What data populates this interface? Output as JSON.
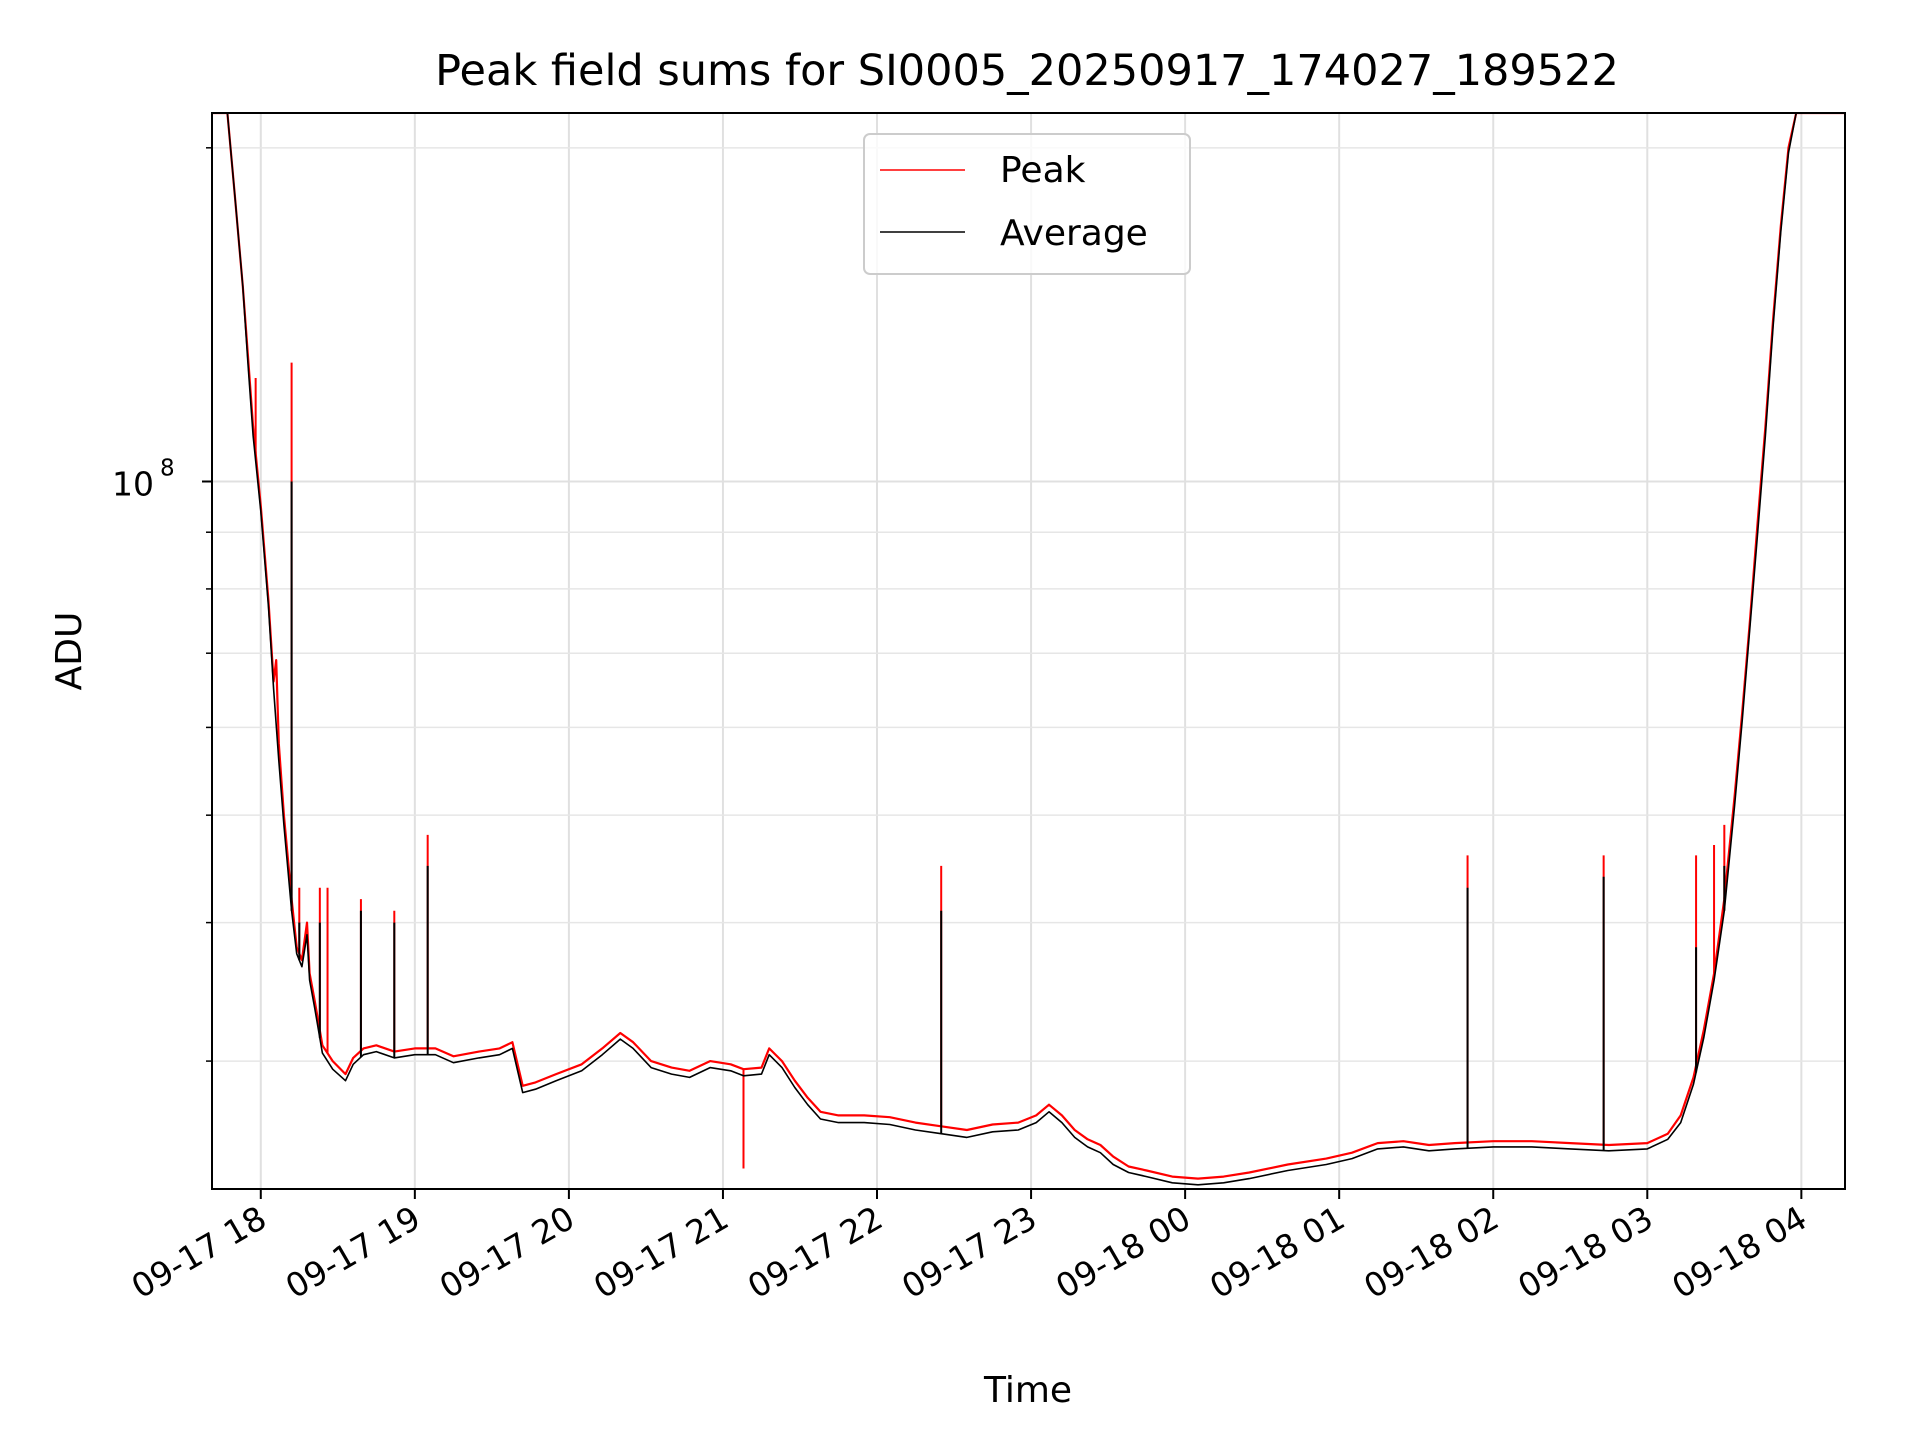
{
  "chart_data": {
    "type": "line",
    "title": "Peak field sums for SI0005_20250917_174027_189522",
    "xlabel": "Time",
    "ylabel": "ADU",
    "yscale": "log",
    "xlim": [
      "2025-09-17 17:41",
      "2025-09-18 04:17"
    ],
    "ylim": [
      23000000,
      215000000
    ],
    "x_ticks": [
      "09-17 18",
      "09-17 19",
      "09-17 20",
      "09-17 21",
      "09-17 22",
      "09-17 23",
      "09-18 00",
      "09-18 01",
      "09-18 02",
      "09-18 03",
      "09-18 04"
    ],
    "y_ticks": [
      {
        "value": 100000000,
        "label": "10^8",
        "mantissa": "10",
        "exponent": "8"
      }
    ],
    "y_minor_ticks": [
      30000000,
      40000000,
      50000000,
      60000000,
      70000000,
      80000000,
      90000000,
      200000000
    ],
    "grid": true,
    "legend_position": "top-center",
    "series": [
      {
        "name": "Peak",
        "color": "#ff0000",
        "points": [
          [
            "2025-09-17 17:41",
            215000000
          ],
          [
            "2025-09-17 17:47",
            215000000
          ],
          [
            "2025-09-17 17:50",
            180000000
          ],
          [
            "2025-09-17 17:53",
            150000000
          ],
          [
            "2025-09-17 17:55",
            130000000
          ],
          [
            "2025-09-17 17:57",
            112000000
          ],
          [
            "2025-09-17 18:00",
            95000000
          ],
          [
            "2025-09-17 18:03",
            78000000
          ],
          [
            "2025-09-17 18:05",
            66000000
          ],
          [
            "2025-09-17 18:06",
            69000000
          ],
          [
            "2025-09-17 18:07",
            58000000
          ],
          [
            "2025-09-17 18:09",
            50000000
          ],
          [
            "2025-09-17 18:12",
            42000000
          ],
          [
            "2025-09-17 18:14",
            38000000
          ],
          [
            "2025-09-17 18:16",
            37000000
          ],
          [
            "2025-09-17 18:18",
            40000000
          ],
          [
            "2025-09-17 18:19",
            36000000
          ],
          [
            "2025-09-17 18:21",
            34000000
          ],
          [
            "2025-09-17 18:24",
            31000000
          ],
          [
            "2025-09-17 18:28",
            30000000
          ],
          [
            "2025-09-17 18:33",
            29200000
          ],
          [
            "2025-09-17 18:36",
            30200000
          ],
          [
            "2025-09-17 18:40",
            30800000
          ],
          [
            "2025-09-17 18:45",
            31000000
          ],
          [
            "2025-09-17 18:52",
            30600000
          ],
          [
            "2025-09-17 19:00",
            30800000
          ],
          [
            "2025-09-17 19:08",
            30800000
          ],
          [
            "2025-09-17 19:15",
            30300000
          ],
          [
            "2025-09-17 19:25",
            30600000
          ],
          [
            "2025-09-17 19:33",
            30800000
          ],
          [
            "2025-09-17 19:38",
            31200000
          ],
          [
            "2025-09-17 19:42",
            28500000
          ],
          [
            "2025-09-17 19:47",
            28700000
          ],
          [
            "2025-09-17 19:55",
            29200000
          ],
          [
            "2025-09-17 20:05",
            29800000
          ],
          [
            "2025-09-17 20:13",
            30800000
          ],
          [
            "2025-09-17 20:20",
            31800000
          ],
          [
            "2025-09-17 20:25",
            31200000
          ],
          [
            "2025-09-17 20:32",
            30000000
          ],
          [
            "2025-09-17 20:40",
            29600000
          ],
          [
            "2025-09-17 20:47",
            29400000
          ],
          [
            "2025-09-17 20:55",
            30000000
          ],
          [
            "2025-09-17 21:03",
            29800000
          ],
          [
            "2025-09-17 21:08",
            29500000
          ],
          [
            "2025-09-17 21:15",
            29600000
          ],
          [
            "2025-09-17 21:18",
            30800000
          ],
          [
            "2025-09-17 21:23",
            30000000
          ],
          [
            "2025-09-17 21:28",
            28800000
          ],
          [
            "2025-09-17 21:33",
            27800000
          ],
          [
            "2025-09-17 21:38",
            27000000
          ],
          [
            "2025-09-17 21:45",
            26800000
          ],
          [
            "2025-09-17 21:55",
            26800000
          ],
          [
            "2025-09-17 22:05",
            26700000
          ],
          [
            "2025-09-17 22:15",
            26400000
          ],
          [
            "2025-09-17 22:25",
            26200000
          ],
          [
            "2025-09-17 22:35",
            26000000
          ],
          [
            "2025-09-17 22:45",
            26300000
          ],
          [
            "2025-09-17 22:55",
            26400000
          ],
          [
            "2025-09-17 23:02",
            26800000
          ],
          [
            "2025-09-17 23:07",
            27400000
          ],
          [
            "2025-09-17 23:12",
            26800000
          ],
          [
            "2025-09-17 23:17",
            26000000
          ],
          [
            "2025-09-17 23:22",
            25500000
          ],
          [
            "2025-09-17 23:27",
            25200000
          ],
          [
            "2025-09-17 23:32",
            24600000
          ],
          [
            "2025-09-17 23:38",
            24100000
          ],
          [
            "2025-09-17 23:45",
            23900000
          ],
          [
            "2025-09-17 23:55",
            23600000
          ],
          [
            "2025-09-18 00:05",
            23500000
          ],
          [
            "2025-09-18 00:15",
            23600000
          ],
          [
            "2025-09-18 00:25",
            23800000
          ],
          [
            "2025-09-18 00:40",
            24200000
          ],
          [
            "2025-09-18 00:55",
            24500000
          ],
          [
            "2025-09-18 01:05",
            24800000
          ],
          [
            "2025-09-18 01:15",
            25300000
          ],
          [
            "2025-09-18 01:25",
            25400000
          ],
          [
            "2025-09-18 01:35",
            25200000
          ],
          [
            "2025-09-18 01:45",
            25300000
          ],
          [
            "2025-09-18 02:00",
            25400000
          ],
          [
            "2025-09-18 02:15",
            25400000
          ],
          [
            "2025-09-18 02:30",
            25300000
          ],
          [
            "2025-09-18 02:45",
            25200000
          ],
          [
            "2025-09-18 03:00",
            25300000
          ],
          [
            "2025-09-18 03:08",
            25800000
          ],
          [
            "2025-09-18 03:13",
            26800000
          ],
          [
            "2025-09-18 03:18",
            29000000
          ],
          [
            "2025-09-18 03:22",
            32000000
          ],
          [
            "2025-09-18 03:26",
            36000000
          ],
          [
            "2025-09-18 03:30",
            42000000
          ],
          [
            "2025-09-18 03:34",
            52000000
          ],
          [
            "2025-09-18 03:37",
            62000000
          ],
          [
            "2025-09-18 03:40",
            75000000
          ],
          [
            "2025-09-18 03:43",
            92000000
          ],
          [
            "2025-09-18 03:46",
            112000000
          ],
          [
            "2025-09-18 03:49",
            140000000
          ],
          [
            "2025-09-18 03:52",
            170000000
          ],
          [
            "2025-09-18 03:55",
            200000000
          ],
          [
            "2025-09-18 03:58",
            215000000
          ],
          [
            "2025-09-18 04:17",
            215000000
          ]
        ],
        "spikes": [
          [
            "2025-09-17 17:58",
            124000000
          ],
          [
            "2025-09-17 18:12",
            128000000
          ],
          [
            "2025-09-17 18:15",
            43000000
          ],
          [
            "2025-09-17 18:23",
            43000000
          ],
          [
            "2025-09-17 18:26",
            43000000
          ],
          [
            "2025-09-17 18:39",
            42000000
          ],
          [
            "2025-09-17 18:52",
            41000000
          ],
          [
            "2025-09-17 19:05",
            48000000
          ],
          [
            "2025-09-17 21:08",
            24000000
          ],
          [
            "2025-09-17 22:25",
            45000000
          ],
          [
            "2025-09-18 01:50",
            46000000
          ],
          [
            "2025-09-18 02:43",
            46000000
          ],
          [
            "2025-09-18 03:19",
            46000000
          ],
          [
            "2025-09-18 03:26",
            47000000
          ],
          [
            "2025-09-18 03:30",
            49000000
          ],
          [
            "2025-09-18 03:38",
            66000000
          ]
        ]
      },
      {
        "name": "Average",
        "color": "#000000",
        "points": [
          [
            "2025-09-17 17:41",
            215000000
          ],
          [
            "2025-09-17 17:47",
            215000000
          ],
          [
            "2025-09-17 17:50",
            180000000
          ],
          [
            "2025-09-17 17:53",
            150000000
          ],
          [
            "2025-09-17 17:55",
            128000000
          ],
          [
            "2025-09-17 17:57",
            110000000
          ],
          [
            "2025-09-17 18:00",
            94000000
          ],
          [
            "2025-09-17 18:03",
            77000000
          ],
          [
            "2025-09-17 18:05",
            65000000
          ],
          [
            "2025-09-17 18:07",
            56000000
          ],
          [
            "2025-09-17 18:09",
            49000000
          ],
          [
            "2025-09-17 18:12",
            41000000
          ],
          [
            "2025-09-17 18:14",
            37500000
          ],
          [
            "2025-09-17 18:16",
            36500000
          ],
          [
            "2025-09-17 18:18",
            39000000
          ],
          [
            "2025-09-17 18:19",
            35500000
          ],
          [
            "2025-09-17 18:21",
            33500000
          ],
          [
            "2025-09-17 18:24",
            30500000
          ],
          [
            "2025-09-17 18:28",
            29500000
          ],
          [
            "2025-09-17 18:33",
            28800000
          ],
          [
            "2025-09-17 18:36",
            29800000
          ],
          [
            "2025-09-17 18:40",
            30400000
          ],
          [
            "2025-09-17 18:45",
            30600000
          ],
          [
            "2025-09-17 18:52",
            30200000
          ],
          [
            "2025-09-17 19:00",
            30400000
          ],
          [
            "2025-09-17 19:08",
            30400000
          ],
          [
            "2025-09-17 19:15",
            29900000
          ],
          [
            "2025-09-17 19:25",
            30200000
          ],
          [
            "2025-09-17 19:33",
            30400000
          ],
          [
            "2025-09-17 19:38",
            30800000
          ],
          [
            "2025-09-17 19:42",
            28100000
          ],
          [
            "2025-09-17 19:47",
            28300000
          ],
          [
            "2025-09-17 19:55",
            28800000
          ],
          [
            "2025-09-17 20:05",
            29400000
          ],
          [
            "2025-09-17 20:13",
            30400000
          ],
          [
            "2025-09-17 20:20",
            31400000
          ],
          [
            "2025-09-17 20:25",
            30800000
          ],
          [
            "2025-09-17 20:32",
            29600000
          ],
          [
            "2025-09-17 20:40",
            29200000
          ],
          [
            "2025-09-17 20:47",
            29000000
          ],
          [
            "2025-09-17 20:55",
            29600000
          ],
          [
            "2025-09-17 21:03",
            29400000
          ],
          [
            "2025-09-17 21:08",
            29100000
          ],
          [
            "2025-09-17 21:15",
            29200000
          ],
          [
            "2025-09-17 21:18",
            30400000
          ],
          [
            "2025-09-17 21:23",
            29600000
          ],
          [
            "2025-09-17 21:28",
            28400000
          ],
          [
            "2025-09-17 21:33",
            27400000
          ],
          [
            "2025-09-17 21:38",
            26600000
          ],
          [
            "2025-09-17 21:45",
            26400000
          ],
          [
            "2025-09-17 21:55",
            26400000
          ],
          [
            "2025-09-17 22:05",
            26300000
          ],
          [
            "2025-09-17 22:15",
            26000000
          ],
          [
            "2025-09-17 22:25",
            25800000
          ],
          [
            "2025-09-17 22:35",
            25600000
          ],
          [
            "2025-09-17 22:45",
            25900000
          ],
          [
            "2025-09-17 22:55",
            26000000
          ],
          [
            "2025-09-17 23:02",
            26400000
          ],
          [
            "2025-09-17 23:07",
            27000000
          ],
          [
            "2025-09-17 23:12",
            26400000
          ],
          [
            "2025-09-17 23:17",
            25600000
          ],
          [
            "2025-09-17 23:22",
            25100000
          ],
          [
            "2025-09-17 23:27",
            24800000
          ],
          [
            "2025-09-17 23:32",
            24200000
          ],
          [
            "2025-09-17 23:38",
            23800000
          ],
          [
            "2025-09-17 23:45",
            23600000
          ],
          [
            "2025-09-17 23:55",
            23300000
          ],
          [
            "2025-09-18 00:05",
            23200000
          ],
          [
            "2025-09-18 00:15",
            23300000
          ],
          [
            "2025-09-18 00:25",
            23500000
          ],
          [
            "2025-09-18 00:40",
            23900000
          ],
          [
            "2025-09-18 00:55",
            24200000
          ],
          [
            "2025-09-18 01:05",
            24500000
          ],
          [
            "2025-09-18 01:15",
            25000000
          ],
          [
            "2025-09-18 01:25",
            25100000
          ],
          [
            "2025-09-18 01:35",
            24900000
          ],
          [
            "2025-09-18 01:45",
            25000000
          ],
          [
            "2025-09-18 02:00",
            25100000
          ],
          [
            "2025-09-18 02:15",
            25100000
          ],
          [
            "2025-09-18 02:30",
            25000000
          ],
          [
            "2025-09-18 02:45",
            24900000
          ],
          [
            "2025-09-18 03:00",
            25000000
          ],
          [
            "2025-09-18 03:08",
            25500000
          ],
          [
            "2025-09-18 03:13",
            26400000
          ],
          [
            "2025-09-18 03:18",
            28600000
          ],
          [
            "2025-09-18 03:22",
            31500000
          ],
          [
            "2025-09-18 03:26",
            35500000
          ],
          [
            "2025-09-18 03:30",
            41000000
          ],
          [
            "2025-09-18 03:34",
            51000000
          ],
          [
            "2025-09-18 03:37",
            61000000
          ],
          [
            "2025-09-18 03:40",
            74000000
          ],
          [
            "2025-09-18 03:43",
            90000000
          ],
          [
            "2025-09-18 03:46",
            110000000
          ],
          [
            "2025-09-18 03:49",
            138000000
          ],
          [
            "2025-09-18 03:52",
            168000000
          ],
          [
            "2025-09-18 03:55",
            198000000
          ],
          [
            "2025-09-18 03:58",
            215000000
          ],
          [
            "2025-09-18 04:17",
            215000000
          ]
        ],
        "spikes": [
          [
            "2025-09-17 18:12",
            100000000
          ],
          [
            "2025-09-17 18:15",
            40000000
          ],
          [
            "2025-09-17 18:23",
            40000000
          ],
          [
            "2025-09-17 18:39",
            41000000
          ],
          [
            "2025-09-17 18:52",
            40000000
          ],
          [
            "2025-09-17 19:05",
            45000000
          ],
          [
            "2025-09-17 22:25",
            41000000
          ],
          [
            "2025-09-18 01:50",
            43000000
          ],
          [
            "2025-09-18 02:43",
            44000000
          ],
          [
            "2025-09-18 03:19",
            38000000
          ],
          [
            "2025-09-18 03:30",
            45000000
          ]
        ]
      }
    ]
  }
}
